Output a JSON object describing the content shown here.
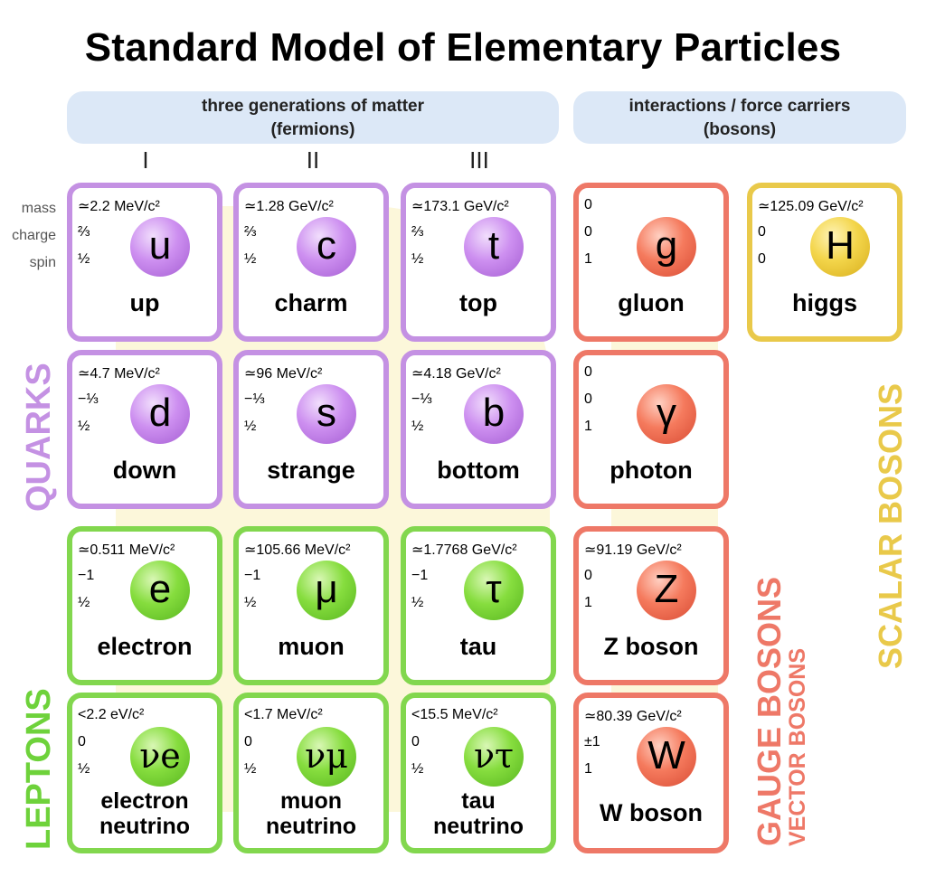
{
  "title": "Standard Model of Elementary Particles",
  "banner_fermions": {
    "line1": "three generations of matter",
    "line2": "(fermions)"
  },
  "banner_bosons": {
    "line1": "interactions / force carriers",
    "line2": "(bosons)"
  },
  "generations": [
    "I",
    "II",
    "III"
  ],
  "row_labels": {
    "mass": "mass",
    "charge": "charge",
    "spin": "spin"
  },
  "group_labels": {
    "quarks": "QUARKS",
    "leptons": "LEPTONS",
    "gauge_bosons": "GAUGE BOSONS",
    "vector_bosons": "VECTOR BOSONS",
    "scalar_bosons": "SCALAR BOSONS"
  },
  "colors": {
    "quark": "#c491e3",
    "lepton": "#82d74e",
    "gauge": "#ee7867",
    "scalar": "#e9c94a",
    "banner": "#dce8f7"
  },
  "particles": [
    {
      "mass": "≃2.2 MeV/c²",
      "charge": "⅔",
      "spin": "½",
      "symbol": "u",
      "name": "up",
      "type": "quark"
    },
    {
      "mass": "≃1.28 GeV/c²",
      "charge": "⅔",
      "spin": "½",
      "symbol": "c",
      "name": "charm",
      "type": "quark"
    },
    {
      "mass": "≃173.1 GeV/c²",
      "charge": "⅔",
      "spin": "½",
      "symbol": "t",
      "name": "top",
      "type": "quark"
    },
    {
      "mass": "0",
      "charge": "0",
      "spin": "1",
      "symbol": "g",
      "name": "gluon",
      "type": "gauge"
    },
    {
      "mass": "≃125.09 GeV/c²",
      "charge": "0",
      "spin": "0",
      "symbol": "H",
      "name": "higgs",
      "type": "scalar"
    },
    {
      "mass": "≃4.7 MeV/c²",
      "charge": "−⅓",
      "spin": "½",
      "symbol": "d",
      "name": "down",
      "type": "quark"
    },
    {
      "mass": "≃96 MeV/c²",
      "charge": "−⅓",
      "spin": "½",
      "symbol": "s",
      "name": "strange",
      "type": "quark"
    },
    {
      "mass": "≃4.18 GeV/c²",
      "charge": "−⅓",
      "spin": "½",
      "symbol": "b",
      "name": "bottom",
      "type": "quark"
    },
    {
      "mass": "0",
      "charge": "0",
      "spin": "1",
      "symbol": "γ",
      "name": "photon",
      "type": "gauge"
    },
    {
      "mass": "≃0.511 MeV/c²",
      "charge": "−1",
      "spin": "½",
      "symbol": "e",
      "name": "electron",
      "type": "lepton"
    },
    {
      "mass": "≃105.66 MeV/c²",
      "charge": "−1",
      "spin": "½",
      "symbol": "μ",
      "name": "muon",
      "type": "lepton"
    },
    {
      "mass": "≃1.7768 GeV/c²",
      "charge": "−1",
      "spin": "½",
      "symbol": "τ",
      "name": "tau",
      "type": "lepton"
    },
    {
      "mass": "≃91.19 GeV/c²",
      "charge": "0",
      "spin": "1",
      "symbol": "Z",
      "name": "Z boson",
      "type": "gauge"
    },
    {
      "mass": "<2.2 eV/c²",
      "charge": "0",
      "spin": "½",
      "symbol": "νe",
      "name": "electron neutrino",
      "type": "lepton"
    },
    {
      "mass": "<1.7 MeV/c²",
      "charge": "0",
      "spin": "½",
      "symbol": "νμ",
      "name": "muon neutrino",
      "type": "lepton"
    },
    {
      "mass": "<15.5 MeV/c²",
      "charge": "0",
      "spin": "½",
      "symbol": "ντ",
      "name": "tau neutrino",
      "type": "lepton"
    },
    {
      "mass": "≃80.39 GeV/c²",
      "charge": "±1",
      "spin": "1",
      "symbol": "W",
      "name": "W boson",
      "type": "gauge"
    }
  ]
}
